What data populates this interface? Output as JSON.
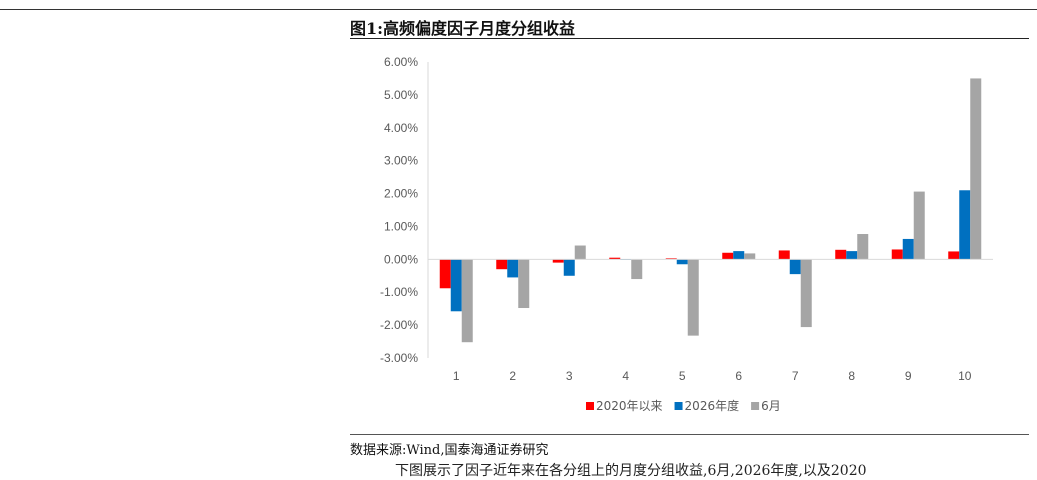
{
  "figure": {
    "title": "图1:高频偏度因子月度分组收益",
    "source": "数据来源:Wind,国泰海通证券研究",
    "trailing_text": "下图展示了因子近年来在各分组上的月度分组收益,6月,2026年度,以及2020"
  },
  "chart_data": {
    "type": "bar",
    "categories": [
      "1",
      "2",
      "3",
      "4",
      "5",
      "6",
      "7",
      "8",
      "9",
      "10"
    ],
    "series": [
      {
        "name": "2020年以来",
        "color": "#ff0000",
        "values": [
          -0.88,
          -0.3,
          -0.1,
          0.05,
          0.03,
          0.2,
          0.27,
          0.29,
          0.3,
          0.24
        ]
      },
      {
        "name": "2026年度",
        "color": "#0070c0",
        "values": [
          -1.58,
          -0.55,
          -0.5,
          0.0,
          -0.15,
          0.25,
          -0.45,
          0.25,
          0.62,
          2.1
        ]
      },
      {
        "name": "6月",
        "color": "#a5a5a5",
        "values": [
          -2.52,
          -1.48,
          0.42,
          -0.6,
          -2.32,
          0.18,
          -2.06,
          0.77,
          2.06,
          5.5
        ]
      }
    ],
    "y_ticks": [
      "6.00%",
      "5.00%",
      "4.00%",
      "3.00%",
      "2.00%",
      "1.00%",
      "0.00%",
      "-1.00%",
      "-2.00%",
      "-3.00%"
    ],
    "ylim": [
      -3,
      6
    ],
    "grid": false,
    "legend_position": "bottom"
  }
}
